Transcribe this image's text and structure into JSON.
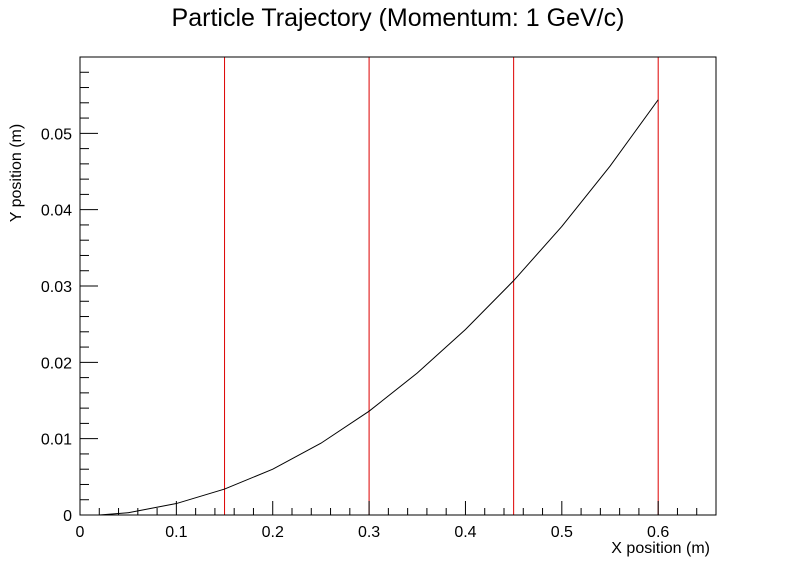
{
  "chart_data": {
    "type": "line",
    "title": "Particle Trajectory (Momentum: 1 GeV/c)",
    "xlabel": "X position (m)",
    "ylabel": "Y position (m)",
    "xlim": [
      0,
      0.66
    ],
    "ylim": [
      0,
      0.06
    ],
    "xticks": [
      0,
      0.1,
      0.2,
      0.3,
      0.4,
      0.5,
      0.6
    ],
    "xtick_labels": [
      "0",
      "0.1",
      "0.2",
      "0.3",
      "0.4",
      "0.5",
      "0.6"
    ],
    "yticks": [
      0,
      0.01,
      0.02,
      0.03,
      0.04,
      0.05
    ],
    "ytick_labels": [
      "0",
      "0.01",
      "0.02",
      "0.03",
      "0.04",
      "0.05"
    ],
    "grid": false,
    "series": [
      {
        "color": "#000000",
        "x": [
          0.02,
          0.05,
          0.1,
          0.15,
          0.2,
          0.25,
          0.3,
          0.35,
          0.4,
          0.45,
          0.5,
          0.55,
          0.6
        ],
        "y": [
          0.0,
          0.0003,
          0.0015,
          0.0034,
          0.006,
          0.0094,
          0.0136,
          0.0186,
          0.0243,
          0.0307,
          0.0378,
          0.0457,
          0.0544
        ]
      }
    ],
    "vertical_lines": {
      "color": "#dd0000",
      "x": [
        0,
        0.15,
        0.3,
        0.45,
        0.6
      ]
    }
  }
}
